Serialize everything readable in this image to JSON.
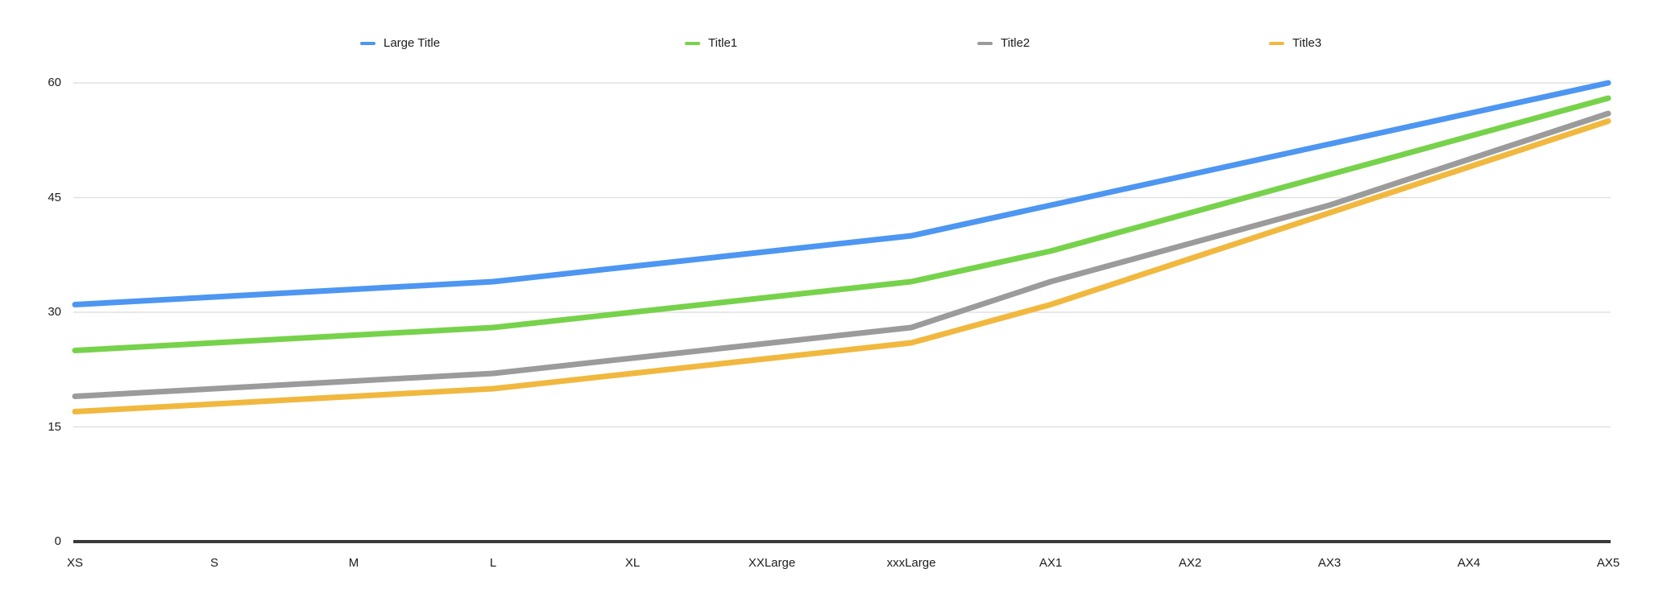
{
  "chart_data": {
    "type": "line",
    "title": "",
    "xlabel": "",
    "ylabel": "",
    "categories": [
      "XS",
      "S",
      "M",
      "L",
      "XL",
      "XXLarge",
      "xxxLarge",
      "AX1",
      "AX2",
      "AX3",
      "AX4",
      "AX5"
    ],
    "series": [
      {
        "name": "Large Title",
        "color": "#4D96F1",
        "values": [
          31,
          32,
          33,
          34,
          36,
          38,
          40,
          44,
          48,
          52,
          56,
          60
        ]
      },
      {
        "name": "Title1",
        "color": "#77D24B",
        "values": [
          25,
          26,
          27,
          28,
          30,
          32,
          34,
          38,
          43,
          48,
          53,
          58
        ]
      },
      {
        "name": "Title2",
        "color": "#9B9B9B",
        "values": [
          19,
          20,
          21,
          22,
          24,
          26,
          28,
          34,
          39,
          44,
          50,
          56
        ]
      },
      {
        "name": "Title3",
        "color": "#F1B83F",
        "values": [
          17,
          18,
          19,
          20,
          22,
          24,
          26,
          31,
          37,
          43,
          49,
          55
        ]
      }
    ],
    "y_ticks": [
      0,
      15,
      30,
      45,
      60
    ],
    "ylim": [
      0,
      60
    ],
    "legend_position": "top",
    "grid": "horizontal",
    "axis_color": "#3A3A3A",
    "grid_color": "#E1E1E1",
    "text_color": "#1C1C1C",
    "background_color": "#FFFFFF"
  }
}
